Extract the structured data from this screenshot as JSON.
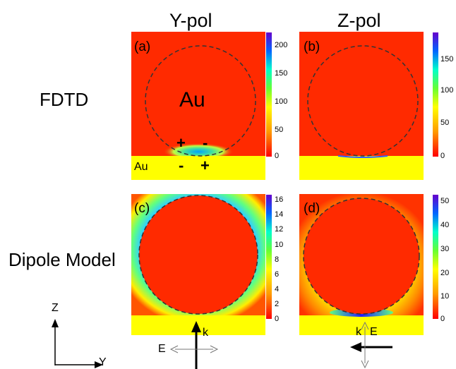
{
  "columns": [
    "Y-pol",
    "Z-pol"
  ],
  "rows": [
    "FDTD",
    "Dipole Model"
  ],
  "panels": {
    "a": {
      "label": "(a)",
      "particle_label": "Au",
      "substrate_label": "Au",
      "charges_top": [
        "+",
        "-"
      ],
      "charges_bottom": [
        "-",
        "+"
      ]
    },
    "b": {
      "label": "(b)"
    },
    "c": {
      "label": "(c)"
    },
    "d": {
      "label": "(d)"
    }
  },
  "colorbars": {
    "a": [
      "200",
      "150",
      "100",
      "50",
      "0"
    ],
    "b": [
      "150",
      "100",
      "50",
      "0"
    ],
    "c": [
      "16",
      "14",
      "12",
      "10",
      "8",
      "6",
      "4",
      "2",
      "0"
    ],
    "d": [
      "50",
      "40",
      "30",
      "20",
      "10",
      "0"
    ]
  },
  "arrows": {
    "k_label": "k",
    "e_label": "E"
  },
  "axes": {
    "vertical": "Z",
    "horizontal": "Y"
  },
  "colors": {
    "field_bg": "#ff2a00",
    "substrate": "#ffff00",
    "dashed": "#333333"
  }
}
